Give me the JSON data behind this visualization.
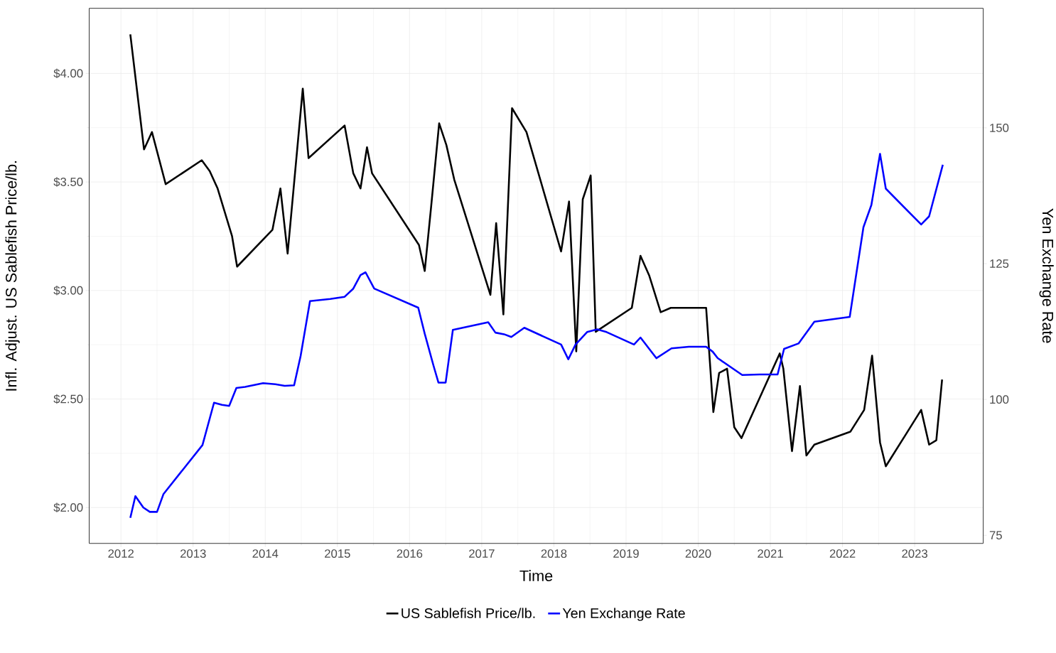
{
  "chart_data": {
    "type": "line",
    "xlabel": "Time",
    "ylabel": "Infl. Adjust. US Sablefish Price/lb.",
    "y2label": "Yen Exchange Rate",
    "xlim": [
      2011.56,
      2023.95
    ],
    "xticks": [
      2012,
      2013,
      2014,
      2015,
      2016,
      2017,
      2018,
      2019,
      2020,
      2021,
      2022,
      2023
    ],
    "ylim": [
      1.835,
      4.3
    ],
    "yticks": [
      {
        "value": 2,
        "label": "$2.00"
      },
      {
        "value": 2.5,
        "label": "$2.50"
      },
      {
        "value": 3,
        "label": "$3.00"
      },
      {
        "value": 3.5,
        "label": "$3.50"
      },
      {
        "value": 4,
        "label": "$4.00"
      }
    ],
    "y2lim": [
      73.5,
      172
    ],
    "y2ticks": [
      75,
      100,
      125,
      150
    ],
    "grid": true,
    "legend": "bottom",
    "series": [
      {
        "name": "US Sablefish Price/lb.",
        "color": "#000000",
        "x": [
          2012.13,
          2012.32,
          2012.43,
          2012.62,
          2013.12,
          2013.23,
          2013.34,
          2013.54,
          2013.61,
          2014.1,
          2014.21,
          2014.31,
          2014.52,
          2014.6,
          2015.1,
          2015.22,
          2015.32,
          2015.41,
          2015.48,
          2016.13,
          2016.21,
          2016.3,
          2016.41,
          2016.51,
          2016.62,
          2017.12,
          2017.2,
          2017.3,
          2017.42,
          2017.62,
          2018.1,
          2018.21,
          2018.31,
          2018.4,
          2018.51,
          2018.58,
          2019.08,
          2019.2,
          2019.32,
          2019.48,
          2019.62,
          2020.11,
          2020.21,
          2020.29,
          2020.4,
          2020.5,
          2020.6,
          2021.13,
          2021.18,
          2021.3,
          2021.41,
          2021.5,
          2021.61,
          2022.11,
          2022.3,
          2022.41,
          2022.52,
          2022.6,
          2023.09,
          2023.2,
          2023.3,
          2023.38
        ],
        "values": [
          4.18,
          3.65,
          3.73,
          3.49,
          3.6,
          3.55,
          3.47,
          3.25,
          3.11,
          3.28,
          3.47,
          3.17,
          3.93,
          3.61,
          3.76,
          3.54,
          3.47,
          3.66,
          3.54,
          3.21,
          3.09,
          3.39,
          3.77,
          3.67,
          3.51,
          2.98,
          3.31,
          2.89,
          3.84,
          3.73,
          3.18,
          3.41,
          2.72,
          3.42,
          3.53,
          2.81,
          2.92,
          3.16,
          3.07,
          2.9,
          2.92,
          2.92,
          2.44,
          2.62,
          2.64,
          2.37,
          2.32,
          2.71,
          2.64,
          2.26,
          2.56,
          2.24,
          2.29,
          2.35,
          2.45,
          2.7,
          2.3,
          2.19,
          2.45,
          2.29,
          2.31,
          2.59
        ]
      },
      {
        "name": "Yen Exchange Rate",
        "color": "#0000ff",
        "axis": "y2",
        "x": [
          2012.13,
          2012.2,
          2012.31,
          2012.4,
          2012.5,
          2012.59,
          2013.13,
          2013.29,
          2013.4,
          2013.5,
          2013.6,
          2013.72,
          2013.97,
          2014.14,
          2014.27,
          2014.4,
          2014.49,
          2014.62,
          2014.9,
          2015.1,
          2015.22,
          2015.32,
          2015.39,
          2015.51,
          2016.12,
          2016.21,
          2016.33,
          2016.4,
          2016.5,
          2016.6,
          2017.09,
          2017.19,
          2017.31,
          2017.41,
          2017.59,
          2018.1,
          2018.2,
          2018.3,
          2018.46,
          2018.6,
          2018.73,
          2019.11,
          2019.2,
          2019.42,
          2019.63,
          2019.87,
          2020.11,
          2020.2,
          2020.27,
          2020.61,
          2020.85,
          2021.1,
          2021.19,
          2021.39,
          2021.61,
          2022.1,
          2022.29,
          2022.4,
          2022.52,
          2022.6,
          2023.09,
          2023.2,
          2023.39
        ],
        "values": [
          78.2,
          82.2,
          80.1,
          79.3,
          79.3,
          82.6,
          91.6,
          99.4,
          99.0,
          98.8,
          102.1,
          102.3,
          103.0,
          102.8,
          102.5,
          102.6,
          108.0,
          118.1,
          118.5,
          118.9,
          120.4,
          122.9,
          123.4,
          120.4,
          116.9,
          112.1,
          106.3,
          103.1,
          103.1,
          112.8,
          114.2,
          112.3,
          112.0,
          111.5,
          113.2,
          110.1,
          107.4,
          110.1,
          112.4,
          112.9,
          112.4,
          110.1,
          111.4,
          107.6,
          109.4,
          109.7,
          109.7,
          108.8,
          107.6,
          104.5,
          104.6,
          104.6,
          109.3,
          110.3,
          114.3,
          115.2,
          131.7,
          135.8,
          145.2,
          138.8,
          132.2,
          133.7,
          143.2
        ]
      }
    ]
  }
}
